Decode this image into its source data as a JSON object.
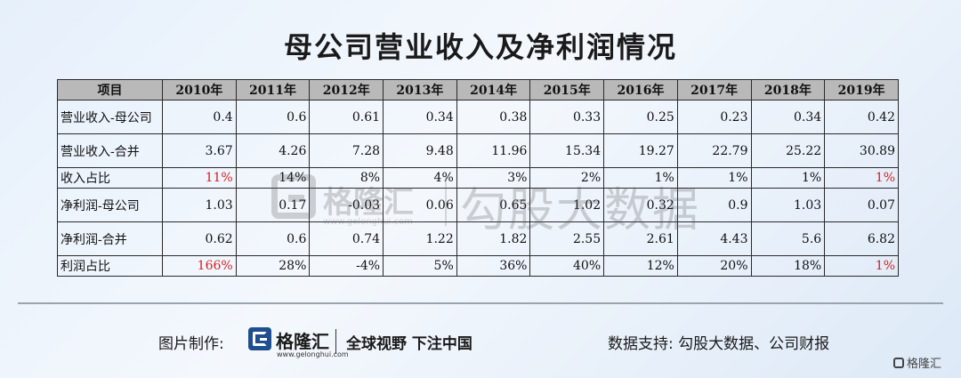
{
  "title": "母公司营业收入及净利润情况",
  "table": {
    "headers": [
      "项目",
      "2010年",
      "2011年",
      "2012年",
      "2013年",
      "2014年",
      "2015年",
      "2016年",
      "2017年",
      "2018年",
      "2019年"
    ],
    "rows": [
      {
        "label": "营业收入-母公司",
        "values": [
          "0.4",
          "0.6",
          "0.61",
          "0.34",
          "0.38",
          "0.33",
          "0.25",
          "0.23",
          "0.34",
          "0.42"
        ]
      },
      {
        "label": "营业收入-合并",
        "values": [
          "3.67",
          "4.26",
          "7.28",
          "9.48",
          "11.96",
          "15.34",
          "19.27",
          "22.79",
          "25.22",
          "30.89"
        ]
      },
      {
        "label": "收入占比",
        "values": [
          "11%",
          "14%",
          "8%",
          "4%",
          "3%",
          "2%",
          "1%",
          "1%",
          "1%",
          "1%"
        ]
      },
      {
        "label": "净利润-母公司",
        "values": [
          "1.03",
          "0.17",
          "-0.03",
          "0.06",
          "0.65",
          "1.02",
          "0.32",
          "0.9",
          "1.03",
          "0.07"
        ]
      },
      {
        "label": "净利润-合并",
        "values": [
          "0.62",
          "0.6",
          "0.74",
          "1.22",
          "1.82",
          "2.55",
          "2.61",
          "4.43",
          "5.6",
          "6.82"
        ]
      },
      {
        "label": "利润占比",
        "values": [
          "166%",
          "28%",
          "-4%",
          "5%",
          "36%",
          "40%",
          "12%",
          "20%",
          "18%",
          "1%"
        ]
      }
    ],
    "highlight_color": "#d42020"
  },
  "watermark": {
    "brand": "格隆汇",
    "site": "www.gelonghui.com",
    "name": "勾股大数据"
  },
  "footer": {
    "credit_label": "图片制作:",
    "brand": "格隆汇",
    "brand_site": "www.gelonghui.com",
    "slogan": "全球视野 下注中国",
    "source": "数据支持: 勾股大数据、公司财报",
    "corner_brand": "格隆汇"
  }
}
